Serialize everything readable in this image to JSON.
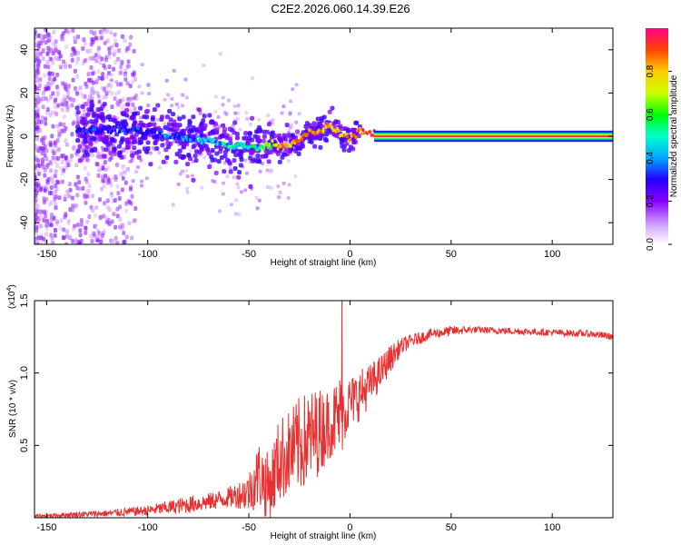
{
  "title": "C2E2.2026.060.14.39.E26",
  "chart_data": [
    {
      "type": "heatmap",
      "description_role": "spectrogram",
      "xlabel": "Height of straight line (km)",
      "ylabel": "Frequency (Hz)",
      "xlim": [
        -156,
        130
      ],
      "ylim": [
        -50,
        50
      ],
      "xticks": [
        -150,
        -100,
        -50,
        0,
        50,
        100
      ],
      "yticks": [
        -40,
        -20,
        0,
        20,
        40
      ],
      "colorbar": {
        "label": "Normalized spectral amplitude",
        "range": [
          0,
          1
        ],
        "ticks": [
          0.0,
          0.2,
          0.4,
          0.6,
          0.8
        ],
        "colors": [
          "#ffffff",
          "#cc99ff",
          "#8800ff",
          "#2200ff",
          "#00aaff",
          "#00ffcc",
          "#00ff00",
          "#ccff00",
          "#ffcc00",
          "#ff5500",
          "#ff0088"
        ]
      },
      "ridge": {
        "x": [
          -135,
          -120,
          -110,
          -100,
          -90,
          -80,
          -70,
          -60,
          -50,
          -45,
          -40,
          -35,
          -30,
          -25,
          -20,
          -15,
          -10,
          -5,
          0,
          5,
          10,
          15,
          130
        ],
        "freq": [
          3,
          3,
          3,
          2,
          0,
          -1,
          -2,
          -4,
          -5,
          -5,
          -4,
          -4,
          -4,
          -2,
          2,
          2,
          5,
          1,
          -1,
          3,
          1,
          0,
          0
        ],
        "amplitude": [
          0.3,
          0.35,
          0.35,
          0.35,
          0.4,
          0.4,
          0.45,
          0.5,
          0.55,
          0.6,
          0.7,
          0.85,
          0.9,
          0.9,
          0.9,
          0.9,
          0.85,
          0.85,
          0.9,
          0.95,
          0.95,
          1.0,
          1.0
        ]
      }
    },
    {
      "type": "line",
      "xlabel": "Height of straight line (km)",
      "ylabel": "SNR (10 * v/v)",
      "scale_label": "(x10",
      "scale_exponent": "4",
      "xlim": [
        -156,
        130
      ],
      "ylim": [
        0,
        1.5
      ],
      "xticks": [
        -150,
        -100,
        -50,
        0,
        50,
        100
      ],
      "yticks": [
        0.5,
        1.0,
        1.5
      ],
      "color": "#e83030",
      "envelope": {
        "x": [
          -156,
          -140,
          -120,
          -100,
          -90,
          -80,
          -70,
          -60,
          -55,
          -50,
          -45,
          -40,
          -35,
          -30,
          -25,
          -20,
          -15,
          -10,
          -5,
          0,
          5,
          10,
          15,
          20,
          25,
          30,
          40,
          50,
          60,
          80,
          100,
          120,
          130
        ],
        "mean": [
          0.01,
          0.02,
          0.03,
          0.05,
          0.07,
          0.09,
          0.11,
          0.14,
          0.16,
          0.18,
          0.3,
          0.2,
          0.4,
          0.45,
          0.5,
          0.55,
          0.6,
          0.65,
          0.7,
          0.8,
          0.85,
          0.92,
          1.0,
          1.1,
          1.18,
          1.22,
          1.27,
          1.29,
          1.3,
          1.29,
          1.28,
          1.27,
          1.25
        ],
        "noise": [
          0.01,
          0.015,
          0.02,
          0.03,
          0.04,
          0.05,
          0.05,
          0.06,
          0.08,
          0.12,
          0.2,
          0.2,
          0.25,
          0.25,
          0.28,
          0.28,
          0.25,
          0.2,
          0.25,
          0.15,
          0.15,
          0.12,
          0.1,
          0.08,
          0.05,
          0.04,
          0.03,
          0.03,
          0.02,
          0.02,
          0.02,
          0.02,
          0.02
        ]
      },
      "spike": {
        "x": -4,
        "value": 1.5
      }
    }
  ]
}
